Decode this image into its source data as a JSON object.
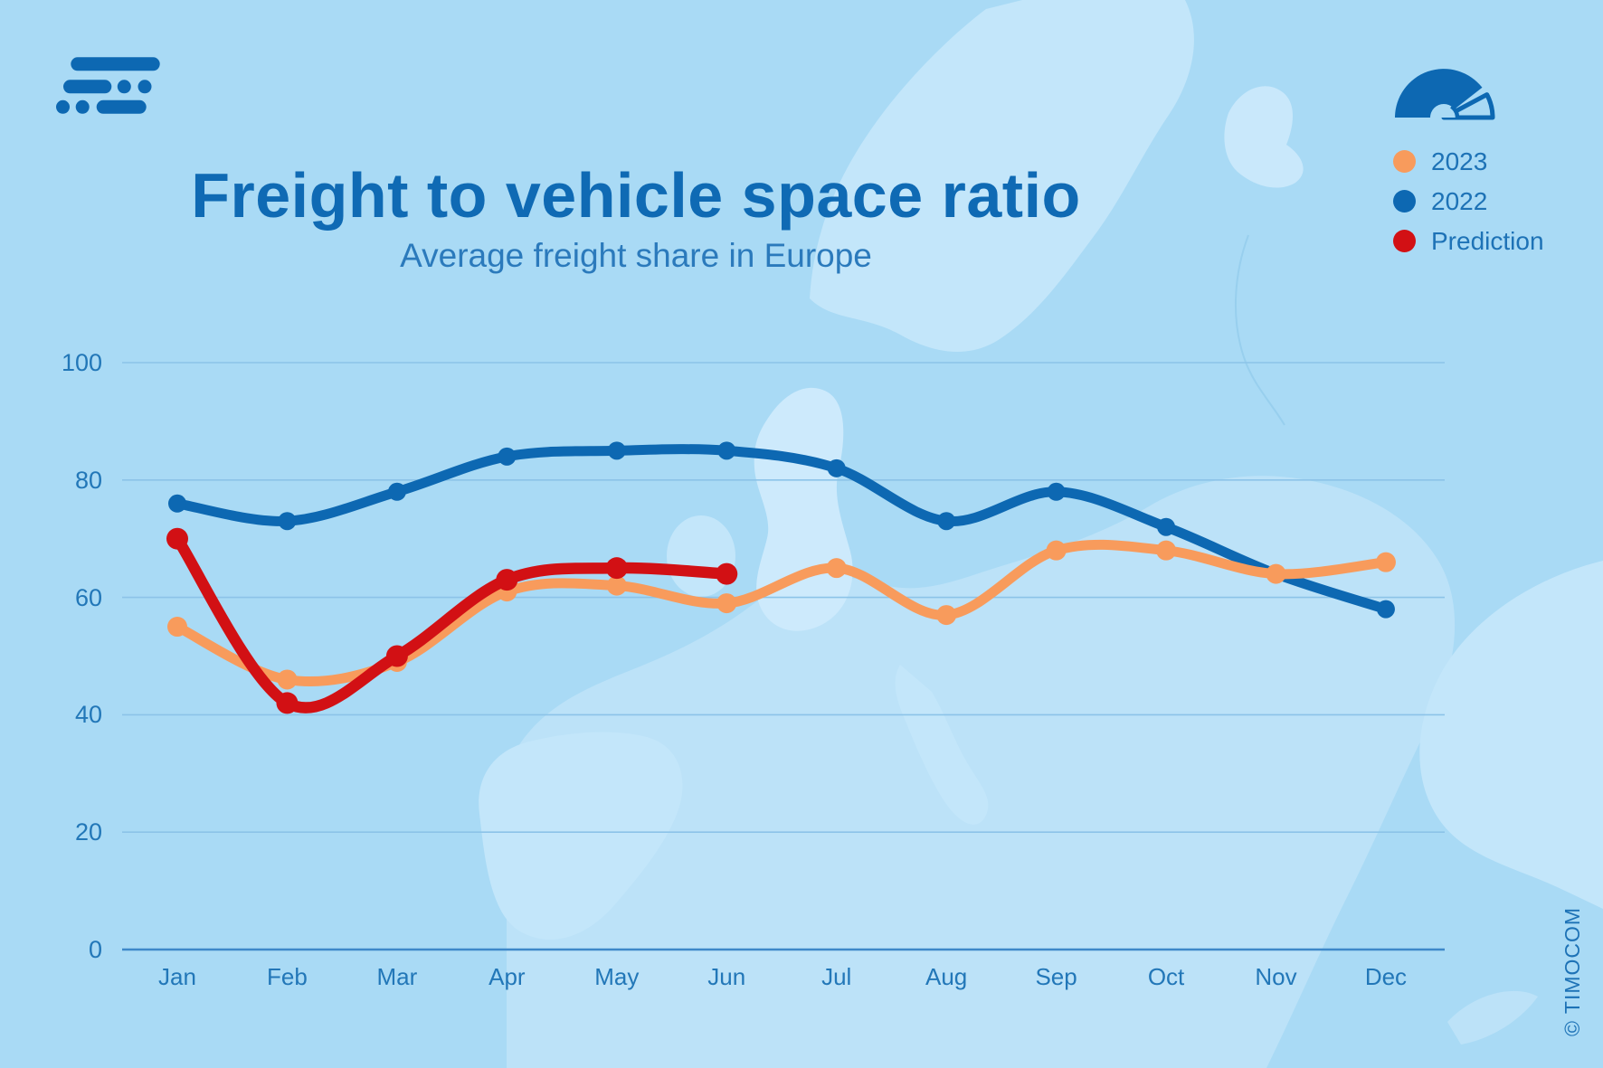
{
  "page": {
    "background_color": "#a9daf5"
  },
  "branding": {
    "logo_icon": "timocom-logo-icon",
    "copyright": "© TIMOCOM"
  },
  "header": {
    "title": "Freight to vehicle space ratio",
    "subtitle": "Average freight share in Europe"
  },
  "legend": {
    "icon": "gauge-icon",
    "items": [
      {
        "label": "2023",
        "color": "#f89b5c"
      },
      {
        "label": "2022",
        "color": "#0d68b2"
      },
      {
        "label": "Prediction",
        "color": "#d21014"
      }
    ]
  },
  "chart_data": {
    "type": "line",
    "title": "Freight to vehicle space ratio",
    "subtitle": "Average freight share in Europe",
    "categories": [
      "Jan",
      "Feb",
      "Mar",
      "Apr",
      "May",
      "Jun",
      "Jul",
      "Aug",
      "Sep",
      "Oct",
      "Nov",
      "Dec"
    ],
    "series": [
      {
        "name": "2023",
        "color": "#f89b5c",
        "values": [
          55,
          46,
          49,
          61,
          62,
          59,
          65,
          57,
          68,
          68,
          64,
          66
        ]
      },
      {
        "name": "2022",
        "color": "#0d68b2",
        "values": [
          76,
          73,
          78,
          84,
          85,
          85,
          82,
          73,
          78,
          72,
          64,
          58
        ]
      },
      {
        "name": "Prediction",
        "color": "#d21014",
        "values": [
          70,
          42,
          50,
          63,
          65,
          64
        ]
      }
    ],
    "ylim": [
      0,
      100
    ],
    "yticks": [
      0,
      20,
      40,
      60,
      80,
      100
    ],
    "grid": "horizontal",
    "smooth": true,
    "legend_position": "top-right",
    "colors": {
      "gridline": "#8cc3e8",
      "axis_line": "#3e88c9",
      "tick_label": "#2277b8"
    }
  }
}
